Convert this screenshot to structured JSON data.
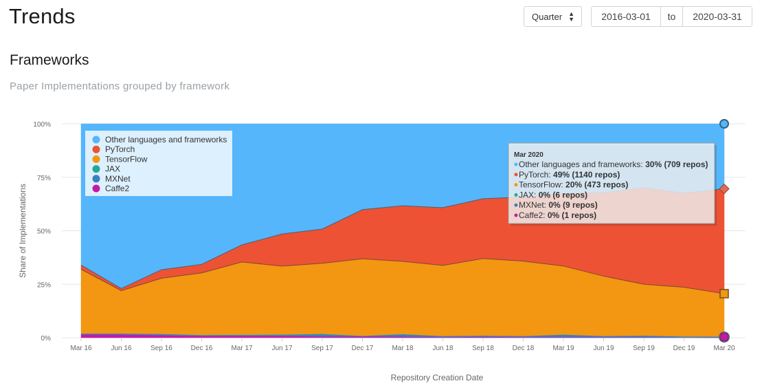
{
  "page": {
    "title": "Trends"
  },
  "controls": {
    "period_select": "Quarter",
    "date_from": "2016-03-01",
    "to_label": "to",
    "date_to": "2020-03-31"
  },
  "section": {
    "title": "Frameworks",
    "subtitle": "Paper Implementations grouped by framework"
  },
  "chart_data": {
    "type": "area",
    "stacked": true,
    "title": "Paper Implementations grouped by framework",
    "xlabel": "Repository Creation Date",
    "ylabel": "Share of Implementations",
    "ylim": [
      0,
      100
    ],
    "grid": true,
    "legend_position": "top-left",
    "categories": [
      "Mar 16",
      "Jun 16",
      "Sep 16",
      "Dec 16",
      "Mar 17",
      "Jun 17",
      "Sep 17",
      "Dec 17",
      "Mar 18",
      "Jun 18",
      "Sep 18",
      "Dec 18",
      "Mar 19",
      "Jun 19",
      "Sep 19",
      "Dec 19",
      "Mar 20"
    ],
    "y_ticks": [
      "0%",
      "25%",
      "50%",
      "75%",
      "100%"
    ],
    "y_tick_values": [
      0,
      25,
      50,
      75,
      100
    ],
    "series": [
      {
        "name": "Caffe2",
        "color": "#c61aa5",
        "values": [
          1.5,
          1.5,
          1.2,
          0.8,
          0.8,
          0.8,
          0.6,
          0.6,
          0.5,
          0.3,
          0.4,
          0.3,
          0.3,
          0.2,
          0.2,
          0.1,
          0
        ]
      },
      {
        "name": "MXNet",
        "color": "#3a80c1",
        "values": [
          0.5,
          0.5,
          0.6,
          0.5,
          0.6,
          0.7,
          1.2,
          0.3,
          1.2,
          0.5,
          0.6,
          0.5,
          1.2,
          0.6,
          0.8,
          0.5,
          0.5
        ]
      },
      {
        "name": "JAX",
        "color": "#26a69a",
        "values": [
          0,
          0,
          0,
          0,
          0,
          0,
          0,
          0,
          0,
          0,
          0,
          0,
          0,
          0,
          0,
          0,
          0.1
        ]
      },
      {
        "name": "TensorFlow",
        "color": "#f39611",
        "values": [
          30,
          20,
          26,
          29,
          34,
          32,
          33,
          36,
          34,
          33,
          36,
          35,
          32,
          28,
          24,
          23,
          20
        ]
      },
      {
        "name": "PyTorch",
        "color": "#ed5234",
        "values": [
          2,
          1,
          4,
          4,
          8,
          15,
          16,
          23,
          26,
          27,
          28,
          30,
          34,
          39,
          45,
          44,
          49
        ]
      },
      {
        "name": "Other languages and frameworks",
        "color": "#55b6fb",
        "values": [
          66,
          77,
          68.2,
          65.7,
          56.6,
          51.5,
          49.2,
          40.1,
          38.3,
          39.2,
          35,
          34.2,
          32.5,
          32.2,
          30,
          32.4,
          30.4
        ]
      }
    ],
    "legend": [
      {
        "name": "Other languages and frameworks",
        "color": "#55b6fb"
      },
      {
        "name": "PyTorch",
        "color": "#ed5234"
      },
      {
        "name": "TensorFlow",
        "color": "#f39611"
      },
      {
        "name": "JAX",
        "color": "#26a69a"
      },
      {
        "name": "MXNet",
        "color": "#3a80c1"
      },
      {
        "name": "Caffe2",
        "color": "#c61aa5"
      }
    ],
    "tooltip": {
      "title": "Mar 2020",
      "rows": [
        {
          "label": "Other languages and frameworks:",
          "value": "30% (709 repos)",
          "color": "#55b6fb"
        },
        {
          "label": "PyTorch:",
          "value": "49% (1140 repos)",
          "color": "#ed5234"
        },
        {
          "label": "TensorFlow:",
          "value": "20% (473 repos)",
          "color": "#f39611"
        },
        {
          "label": "JAX:",
          "value": "0% (6 repos)",
          "color": "#26a69a"
        },
        {
          "label": "MXNet:",
          "value": "0% (9 repos)",
          "color": "#3a80c1"
        },
        {
          "label": "Caffe2:",
          "value": "0% (1 repos)",
          "color": "#c61aa5"
        }
      ]
    }
  }
}
